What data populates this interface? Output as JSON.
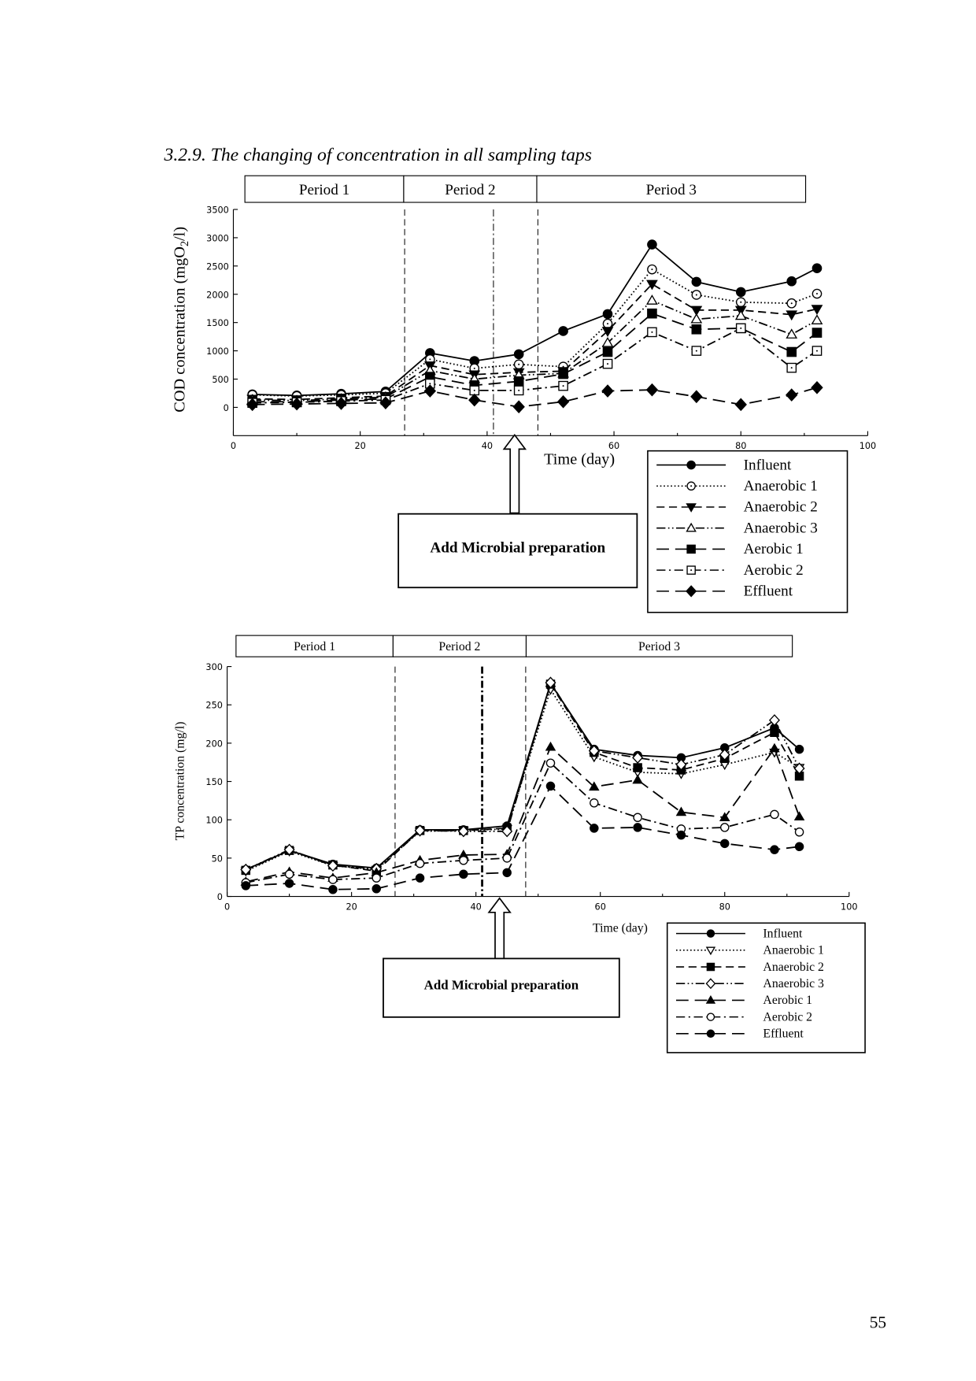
{
  "section_heading": "3.2.9. The changing of concentration in all sampling taps",
  "page_number": "55",
  "chart_data": [
    {
      "type": "line",
      "title": "",
      "xlabel": "Time (day)",
      "ylabel_parts": [
        "COD concentration (mgO",
        "2",
        "/l)"
      ],
      "xlim": [
        0,
        100
      ],
      "ylim": [
        -500,
        3500
      ],
      "x_ticks": [
        0,
        20,
        40,
        60,
        80,
        100
      ],
      "y_ticks": [
        0,
        500,
        1000,
        1500,
        2000,
        2500,
        3000,
        3500
      ],
      "grid": false,
      "periods": [
        "Period 1",
        "Period 2",
        "Period 3"
      ],
      "reference_lines_x": [
        27,
        41,
        48
      ],
      "annotation": {
        "text": "Add Microbial preparation",
        "x": 44.5
      },
      "legend_placement": "bottom-right",
      "x": [
        3,
        10,
        17,
        24,
        31,
        38,
        45,
        52,
        59,
        66,
        73,
        80,
        88,
        92
      ],
      "series": [
        {
          "name": "Influent",
          "marker": "filled-circle",
          "line_style": "solid",
          "values": [
            230,
            210,
            240,
            280,
            960,
            820,
            940,
            1350,
            1650,
            2880,
            2220,
            2040,
            2230,
            2460
          ]
        },
        {
          "name": "Anaerobic 1",
          "marker": "dotted-circle",
          "line_style": "dotted",
          "values": [
            220,
            200,
            220,
            250,
            850,
            690,
            760,
            720,
            1480,
            2440,
            1990,
            1860,
            1840,
            2010
          ]
        },
        {
          "name": "Anaerobic 2",
          "marker": "filled-triangle-down",
          "line_style": "dashed",
          "values": [
            150,
            140,
            170,
            200,
            740,
            580,
            620,
            640,
            1350,
            2180,
            1720,
            1720,
            1640,
            1740
          ]
        },
        {
          "name": "Anaerobic 3",
          "marker": "open-triangle-up",
          "line_style": "dash-dot-dot",
          "values": [
            130,
            120,
            150,
            180,
            650,
            500,
            570,
            600,
            1140,
            1890,
            1560,
            1620,
            1290,
            1540
          ]
        },
        {
          "name": "Aerobic 1",
          "marker": "filled-square",
          "line_style": "long-dash",
          "values": [
            100,
            100,
            130,
            150,
            540,
            390,
            460,
            590,
            980,
            1660,
            1380,
            1400,
            980,
            1320
          ]
        },
        {
          "name": "Aerobic 2",
          "marker": "dotted-square",
          "line_style": "dash-dot",
          "values": [
            80,
            90,
            110,
            130,
            420,
            300,
            300,
            380,
            770,
            1330,
            1000,
            1400,
            700,
            1000
          ]
        },
        {
          "name": "Effluent",
          "marker": "filled-diamond",
          "line_style": "long-dash",
          "values": [
            50,
            60,
            70,
            80,
            290,
            130,
            10,
            100,
            290,
            310,
            190,
            50,
            220,
            350
          ]
        }
      ]
    },
    {
      "type": "line",
      "title": "",
      "xlabel": "Time (day)",
      "ylabel_parts": [
        "TP concentration (mg/l)"
      ],
      "xlim": [
        0,
        100
      ],
      "ylim": [
        0,
        300
      ],
      "x_ticks": [
        0,
        20,
        40,
        60,
        80,
        100
      ],
      "y_ticks": [
        0,
        50,
        100,
        150,
        200,
        250,
        300
      ],
      "grid": false,
      "periods": [
        "Period 1",
        "Period 2",
        "Period 3"
      ],
      "reference_lines_x": [
        27,
        41,
        48
      ],
      "annotation": {
        "text": "Add Microbial preparation",
        "x": 44
      },
      "legend_placement": "bottom-right",
      "x": [
        3,
        10,
        17,
        24,
        31,
        38,
        45,
        52,
        59,
        66,
        73,
        80,
        88,
        92
      ],
      "series": [
        {
          "name": "Influent",
          "marker": "filled-circle",
          "line_style": "solid",
          "values": [
            35,
            60,
            42,
            37,
            87,
            87,
            92,
            278,
            192,
            184,
            181,
            194,
            220,
            192
          ]
        },
        {
          "name": "Anaerobic 1",
          "marker": "open-triangle-down",
          "line_style": "dotted",
          "values": [
            33,
            59,
            40,
            35,
            85,
            86,
            88,
            270,
            182,
            162,
            160,
            172,
            188,
            168
          ]
        },
        {
          "name": "Anaerobic 2",
          "marker": "filled-square",
          "line_style": "dashed",
          "values": [
            34,
            60,
            41,
            33,
            86,
            86,
            89,
            277,
            188,
            168,
            165,
            180,
            214,
            157
          ]
        },
        {
          "name": "Anaerobic 3",
          "marker": "open-diamond",
          "line_style": "dash-dot-dot",
          "values": [
            35,
            61,
            40,
            36,
            86,
            85,
            85,
            279,
            190,
            181,
            172,
            185,
            230,
            167
          ]
        },
        {
          "name": "Aerobic 1",
          "marker": "filled-triangle-up",
          "line_style": "long-dash",
          "values": [
            19,
            32,
            24,
            31,
            47,
            54,
            55,
            195,
            143,
            152,
            110,
            103,
            193,
            104
          ]
        },
        {
          "name": "Aerobic 2",
          "marker": "open-circle",
          "line_style": "dash-dot",
          "values": [
            18,
            29,
            22,
            24,
            43,
            47,
            50,
            174,
            122,
            103,
            88,
            90,
            107,
            84
          ]
        },
        {
          "name": "Effluent",
          "marker": "filled-circle",
          "line_style": "long-dash",
          "values": [
            14,
            17,
            9,
            10,
            24,
            29,
            31,
            144,
            89,
            90,
            80,
            69,
            61,
            65
          ]
        }
      ]
    }
  ]
}
